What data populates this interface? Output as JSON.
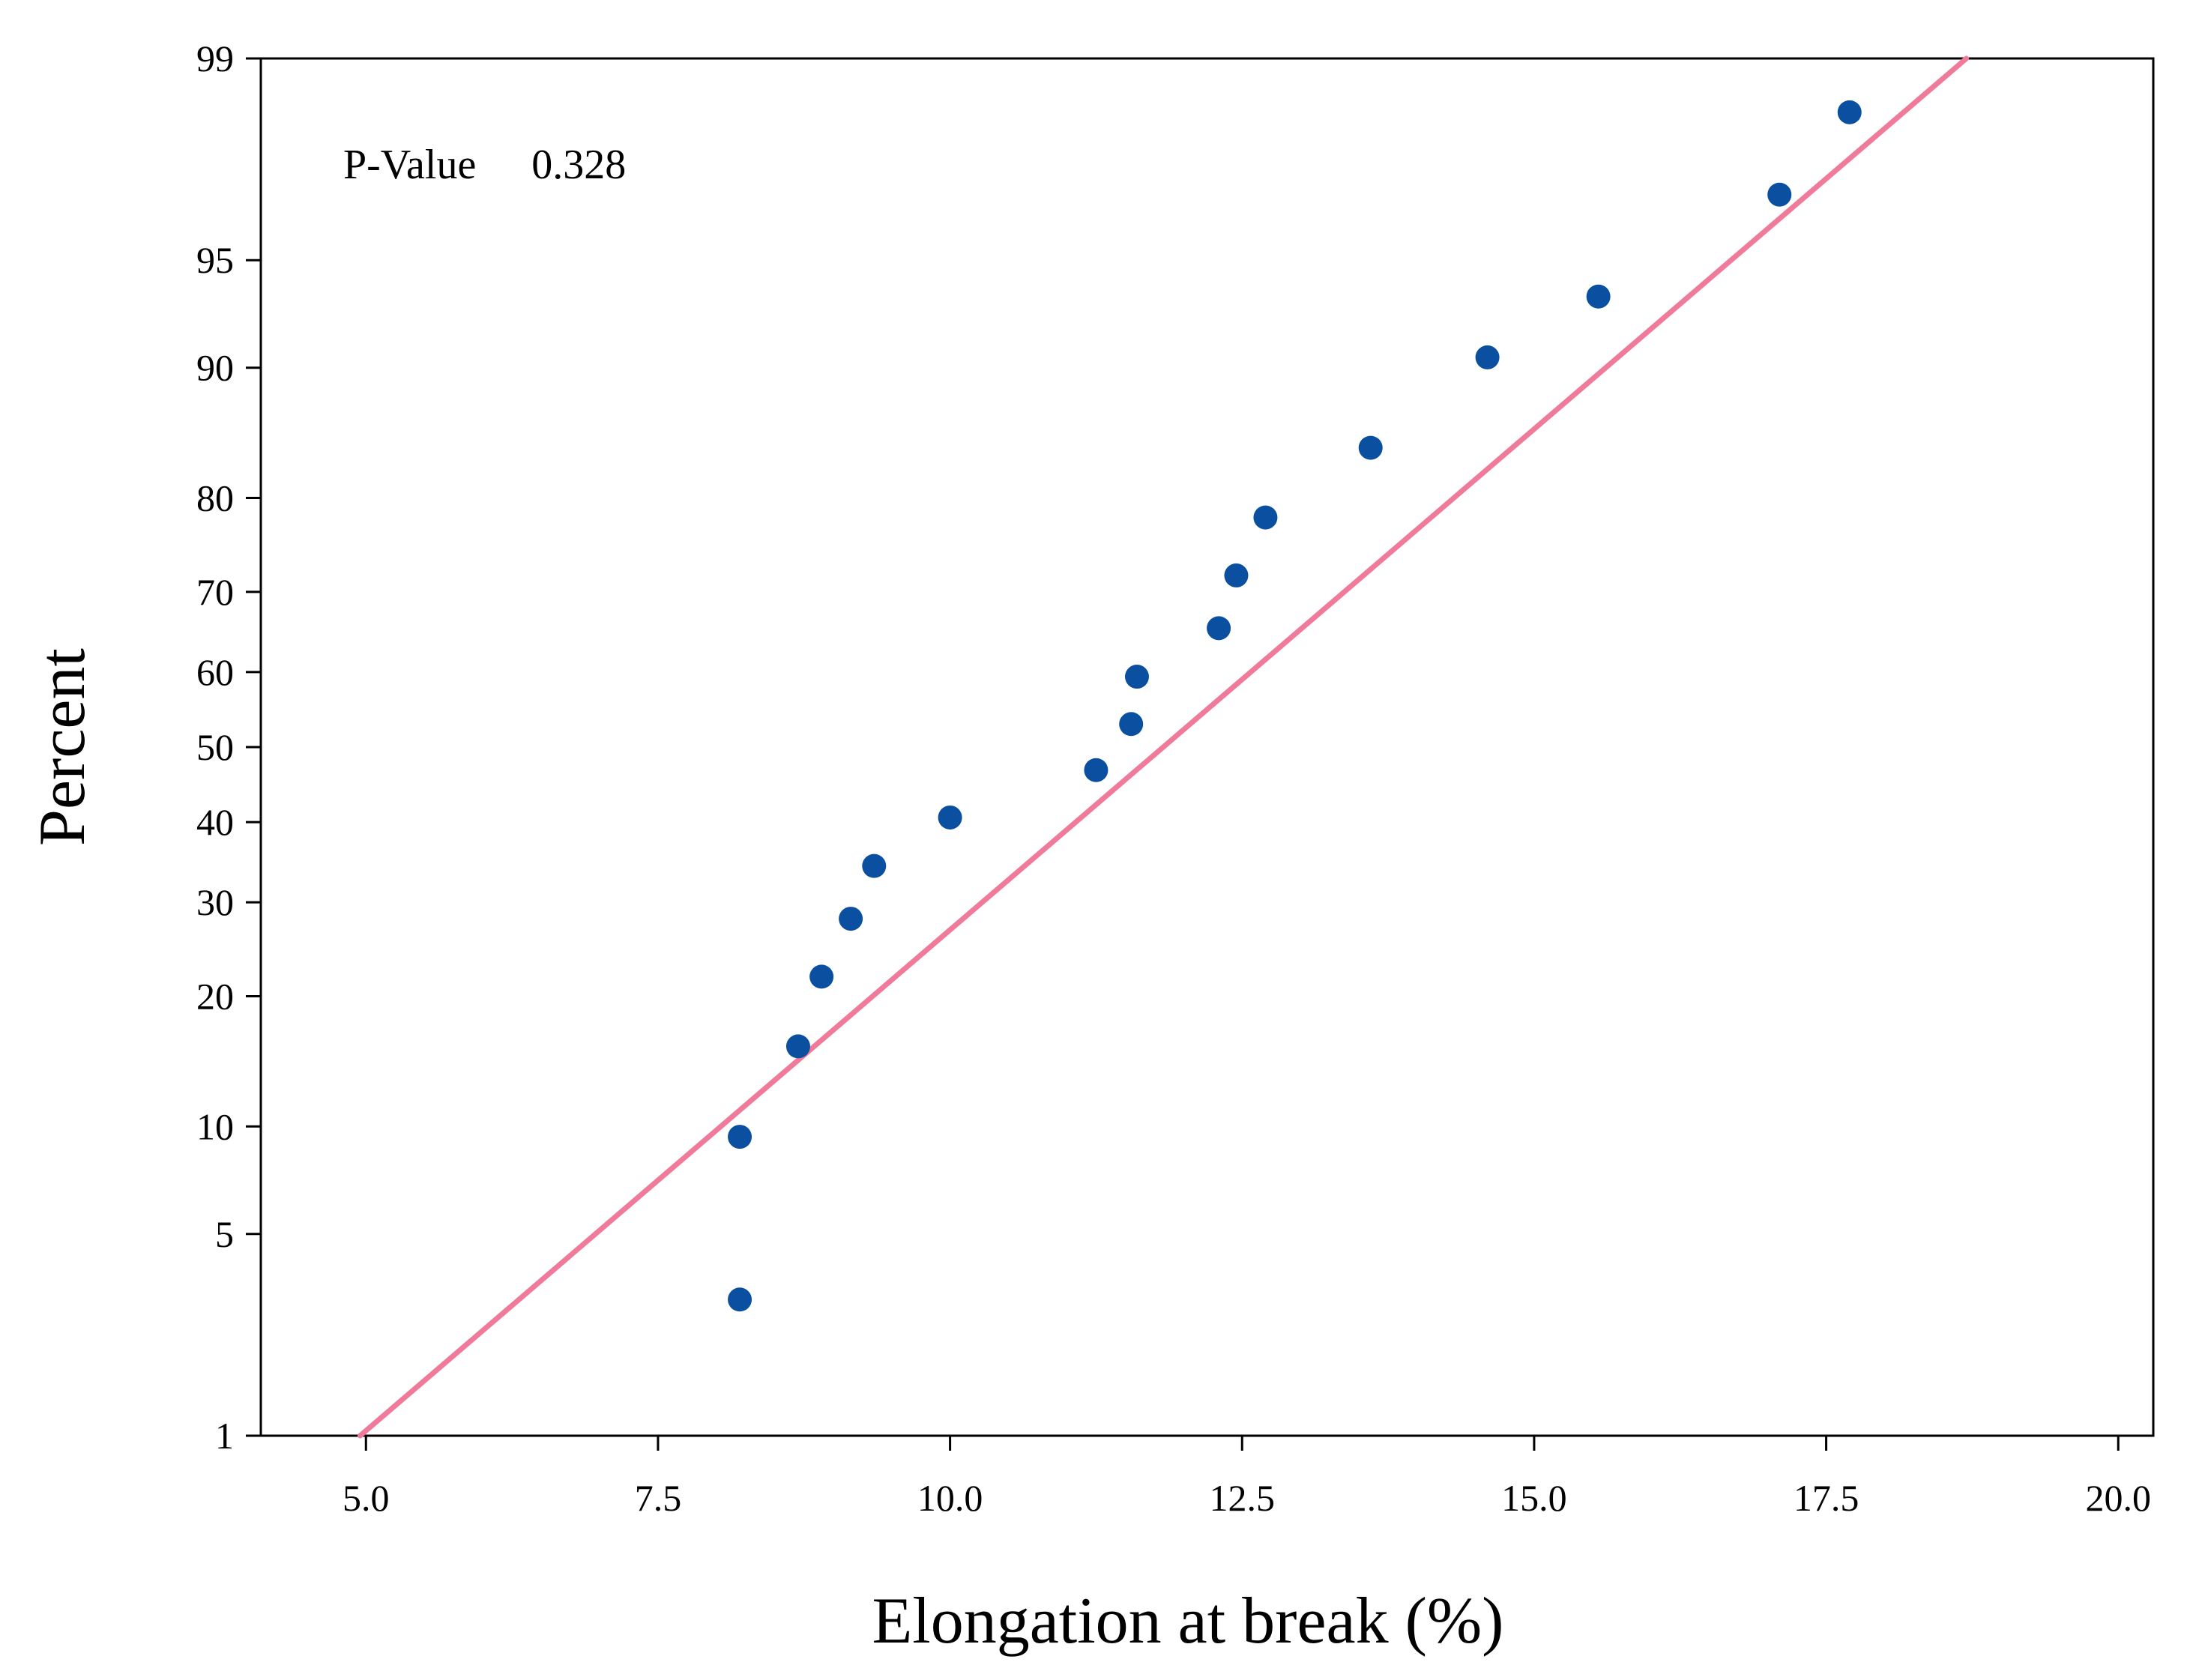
{
  "chart_data": {
    "type": "scatter",
    "subtype": "normal-probability-plot",
    "title": "",
    "xlabel": "Elongation at break (%)",
    "ylabel": "Percent",
    "xlim": [
      4.1,
      20.3
    ],
    "ylim": [
      1,
      99
    ],
    "x_ticks": [
      5.0,
      7.5,
      10.0,
      12.5,
      15.0,
      17.5,
      20.0
    ],
    "x_tick_labels": [
      "5.0",
      "7.5",
      "10.0",
      "12.5",
      "15.0",
      "17.5",
      "20.0"
    ],
    "y_ticks": [
      1,
      5,
      10,
      20,
      30,
      40,
      50,
      60,
      70,
      80,
      90,
      95,
      99
    ],
    "y_tick_labels": [
      "1",
      "5",
      "10",
      "20",
      "30",
      "40",
      "50",
      "60",
      "70",
      "80",
      "90",
      "95",
      "99"
    ],
    "annotation": {
      "label": "P-Value",
      "value": "0.328"
    },
    "fit_line": {
      "from": {
        "x": 4.95,
        "y": 1
      },
      "to": {
        "x": 18.7,
        "y": 99
      }
    },
    "series": [
      {
        "name": "observations",
        "points": [
          {
            "x": 8.2,
            "y": 3.1
          },
          {
            "x": 8.2,
            "y": 9.4
          },
          {
            "x": 8.7,
            "y": 15.6
          },
          {
            "x": 8.9,
            "y": 21.9
          },
          {
            "x": 9.15,
            "y": 28.1
          },
          {
            "x": 9.35,
            "y": 34.4
          },
          {
            "x": 10.0,
            "y": 40.6
          },
          {
            "x": 11.25,
            "y": 46.9
          },
          {
            "x": 11.55,
            "y": 53.1
          },
          {
            "x": 11.6,
            "y": 59.4
          },
          {
            "x": 12.3,
            "y": 65.6
          },
          {
            "x": 12.45,
            "y": 71.9
          },
          {
            "x": 12.7,
            "y": 78.1
          },
          {
            "x": 13.6,
            "y": 84.4
          },
          {
            "x": 14.6,
            "y": 90.6
          },
          {
            "x": 15.55,
            "y": 93.6
          },
          {
            "x": 17.1,
            "y": 96.9
          },
          {
            "x": 17.7,
            "y": 98.4
          }
        ]
      }
    ]
  },
  "colors": {
    "points": "#0a4fa0",
    "fit_line": "#f07a9a",
    "frame": "#000000",
    "text": "#000000"
  }
}
